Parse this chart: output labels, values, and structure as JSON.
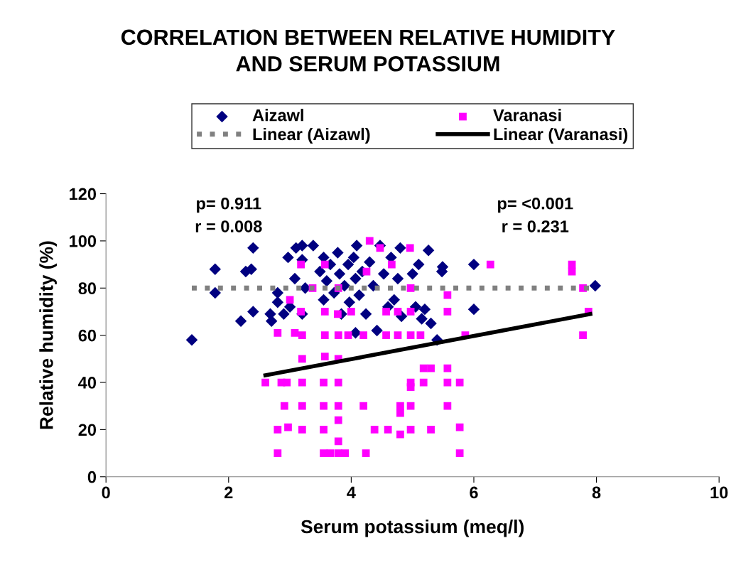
{
  "chart_data": {
    "type": "scatter",
    "title": "CORRELATION BETWEEN RELATIVE HUMIDITY\nAND SERUM POTASSIUM",
    "xlabel": "Serum potassium (meq/l)",
    "ylabel": "Relative humidity (%)",
    "xlim": [
      0,
      10
    ],
    "xticks": [
      0,
      2,
      4,
      6,
      8,
      10
    ],
    "ylim": [
      0,
      120
    ],
    "yticks": [
      0,
      20,
      40,
      60,
      80,
      100,
      120
    ],
    "grid": false,
    "legend": "top",
    "annotations": [
      "p= 0.911\nr = 0.008",
      "p= <0.001\nr = 0.231"
    ],
    "series": [
      {
        "name": "Aizawl",
        "marker": "diamond",
        "color": "#000080",
        "x": [
          1.4,
          1.78,
          1.78,
          2.2,
          2.28,
          2.37,
          2.4,
          2.4,
          2.68,
          2.7,
          2.8,
          2.8,
          2.9,
          2.97,
          3.0,
          3.1,
          3.08,
          3.2,
          3.2,
          3.2,
          3.25,
          3.38,
          3.49,
          3.55,
          3.55,
          3.6,
          3.66,
          3.72,
          3.78,
          3.81,
          3.84,
          3.89,
          3.95,
          3.97,
          4.04,
          4.07,
          4.09,
          4.13,
          4.18,
          4.24,
          4.3,
          4.36,
          4.47,
          4.53,
          4.6,
          4.65,
          4.7,
          4.76,
          4.8,
          4.82,
          5.0,
          5.05,
          5.1,
          5.15,
          5.2,
          5.26,
          5.3,
          5.48,
          5.49,
          5.4,
          6.0,
          6.0,
          7.98,
          4.07,
          4.42
        ],
        "values": [
          58,
          88,
          78,
          66,
          87,
          88,
          97,
          70,
          69,
          66,
          78,
          74,
          69,
          93,
          72,
          97,
          84,
          92,
          98,
          69,
          80,
          98,
          87,
          93,
          75,
          83,
          90,
          78,
          95,
          86,
          69,
          81,
          90,
          74,
          93,
          84,
          98,
          77,
          87,
          69,
          91,
          81,
          98,
          86,
          72,
          93,
          75,
          84,
          97,
          68,
          86,
          72,
          90,
          67,
          71,
          96,
          65,
          87,
          89,
          58,
          90,
          71,
          81,
          61,
          62
        ]
      },
      {
        "name": "Varanasi",
        "marker": "square",
        "color": "#ff00ff",
        "x": [
          2.6,
          2.8,
          2.8,
          2.8,
          2.86,
          2.91,
          2.95,
          2.97,
          3.0,
          3.08,
          3.18,
          3.18,
          3.2,
          3.2,
          3.2,
          3.2,
          3.2,
          3.37,
          3.55,
          3.55,
          3.55,
          3.55,
          3.57,
          3.57,
          3.57,
          3.57,
          3.66,
          3.78,
          3.79,
          3.79,
          3.79,
          3.79,
          3.79,
          3.79,
          3.79,
          3.79,
          3.9,
          3.95,
          4.0,
          4.24,
          4.2,
          4.2,
          4.25,
          4.3,
          4.38,
          4.47,
          4.57,
          4.57,
          4.6,
          4.66,
          4.76,
          4.76,
          4.8,
          4.8,
          4.8,
          4.96,
          4.97,
          4.97,
          4.97,
          4.97,
          4.97,
          4.97,
          4.97,
          5.13,
          5.18,
          5.18,
          5.3,
          5.3,
          5.57,
          5.57,
          5.57,
          5.57,
          5.57,
          5.77,
          5.77,
          5.77,
          5.86,
          6.27,
          7.6,
          7.6,
          7.78,
          7.78,
          7.87
        ],
        "values": [
          40,
          20,
          10,
          61,
          40,
          30,
          40,
          21,
          75,
          61,
          90,
          70,
          50,
          40,
          30,
          20,
          60,
          80,
          40,
          30,
          20,
          10,
          60,
          51,
          70,
          90,
          10,
          69,
          60,
          50,
          40,
          30,
          24,
          15,
          10,
          80,
          10,
          60,
          70,
          10,
          30,
          60,
          87,
          100,
          20,
          97,
          70,
          60,
          20,
          90,
          70,
          60,
          30,
          18,
          27,
          97,
          80,
          70,
          60,
          40,
          38,
          30,
          20,
          60,
          46,
          40,
          46,
          20,
          77,
          70,
          46,
          40,
          30,
          40,
          21,
          10,
          60,
          90,
          90,
          87,
          80,
          60,
          70
        ]
      },
      {
        "name": "Linear (Aizawl)",
        "type": "line",
        "line_style": "dotted",
        "color": "#808080",
        "x": [
          1.4,
          8.0
        ],
        "values": [
          80,
          80
        ]
      },
      {
        "name": "Linear (Varanasi)",
        "type": "line",
        "line_style": "solid",
        "color": "#000000",
        "x": [
          2.6,
          7.9
        ],
        "values": [
          43,
          69
        ]
      }
    ]
  }
}
